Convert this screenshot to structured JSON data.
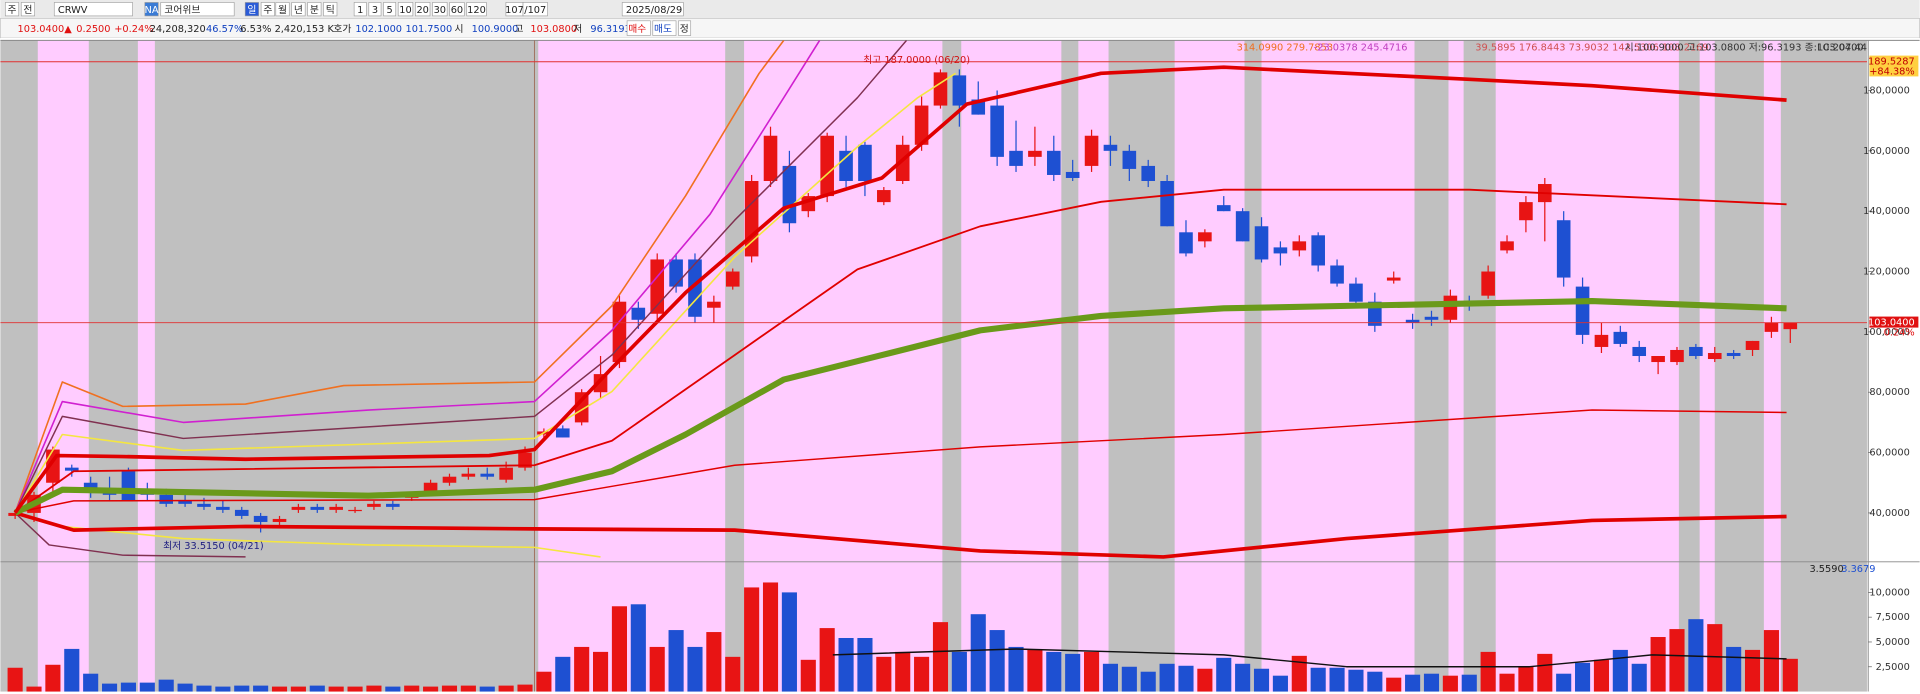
{
  "toolbar": {
    "row1": [
      "주",
      "전",
      "CRWV",
      "NA",
      "코어위브",
      "일",
      "주",
      "월",
      "년",
      "분",
      "틱",
      "1",
      "3",
      "5",
      "10",
      "20",
      "30",
      "60",
      "120",
      "107",
      "/107",
      "2025/08/29"
    ],
    "row2": [
      {
        "text": "103.0400▲",
        "color": "#e01010"
      },
      {
        "text": "0.2500",
        "color": "#e01010"
      },
      {
        "text": "+0.24%",
        "color": "#e01010"
      },
      {
        "text": "24,208,320",
        "color": "#222222"
      },
      {
        "text": "46.57%",
        "color": "#1040c0"
      },
      {
        "text": "6.53%",
        "color": "#222222"
      },
      {
        "text": "2,420,153 K",
        "color": "#222222"
      },
      {
        "text": "호가",
        "color": "#222222"
      },
      {
        "text": "102.1000",
        "color": "#1040c0"
      },
      {
        "text": "101.7500",
        "color": "#1040c0"
      },
      {
        "text": "시",
        "color": "#222222"
      },
      {
        "text": "100.9000",
        "color": "#1040c0"
      },
      {
        "text": "고",
        "color": "#222222"
      },
      {
        "text": "103.0800",
        "color": "#e01010"
      },
      {
        "text": "저",
        "color": "#222222"
      },
      {
        "text": "96.3193",
        "color": "#1040c0"
      },
      {
        "text": "매수",
        "color": "#e01010"
      },
      {
        "text": "매도",
        "color": "#1040c0"
      },
      {
        "text": "정",
        "color": "#222222"
      }
    ]
  },
  "chart_data": [
    {
      "type": "candlestick",
      "xlim": [
        -0.78,
        98.06
      ],
      "ylim": [
        24.2,
        196.6
      ],
      "yticks": [
        {
          "value": 40,
          "label": "40,0000"
        },
        {
          "value": 60,
          "label": "60,0000"
        },
        {
          "value": 80,
          "label": "80,0000"
        },
        {
          "value": 100,
          "label": "100,0000"
        },
        {
          "value": 120,
          "label": "120,0000"
        },
        {
          "value": 140,
          "label": "140,0000"
        },
        {
          "value": 160,
          "label": "160,0000"
        },
        {
          "value": 180,
          "label": "180,0000"
        }
      ],
      "up_color": "#e81414",
      "down_color": "#1e50d2",
      "plot_bg": "#c0c0c0",
      "band_color": "#ffccff",
      "bands": [
        [
          1.2,
          3.9
        ],
        [
          6.5,
          7.4
        ],
        [
          27.7,
          37.6
        ],
        [
          38.6,
          49.1
        ],
        [
          50.1,
          55.4
        ],
        [
          56.3,
          57.9
        ],
        [
          61.4,
          65.1
        ],
        [
          66.0,
          74.1
        ],
        [
          75.9,
          76.7
        ],
        [
          78.4,
          88.1
        ],
        [
          89.2,
          90.0
        ],
        [
          92.6,
          93.5
        ]
      ],
      "candles": [
        [
          39,
          40,
          38,
          40
        ],
        [
          40,
          47,
          37,
          46
        ],
        [
          50,
          62,
          47,
          61
        ],
        [
          55,
          56,
          52,
          54
        ],
        [
          50,
          52,
          45,
          48
        ],
        [
          48,
          52,
          44,
          46
        ],
        [
          54,
          55,
          44,
          44
        ],
        [
          48,
          50,
          44,
          46
        ],
        [
          46,
          48,
          42,
          43
        ],
        [
          44,
          46,
          42,
          43
        ],
        [
          43,
          45,
          41,
          42
        ],
        [
          42,
          44,
          40,
          41
        ],
        [
          41,
          42,
          38,
          39
        ],
        [
          39,
          40,
          33.515,
          37
        ],
        [
          37,
          39,
          36,
          38
        ],
        [
          41,
          43,
          40,
          42
        ],
        [
          42,
          43,
          40,
          41
        ],
        [
          41,
          43,
          40,
          42
        ],
        [
          41,
          42,
          40,
          41
        ],
        [
          42,
          44,
          41,
          43
        ],
        [
          43,
          44,
          41,
          42
        ],
        [
          45,
          47,
          44,
          46
        ],
        [
          47,
          51,
          46,
          50
        ],
        [
          50,
          53,
          49,
          52
        ],
        [
          52,
          55,
          51,
          53
        ],
        [
          53,
          55,
          51,
          52
        ],
        [
          51,
          57,
          50,
          55
        ],
        [
          55,
          62,
          54,
          60
        ],
        [
          66,
          68,
          64,
          67
        ],
        [
          68,
          69,
          65,
          65
        ],
        [
          70,
          81,
          69,
          80
        ],
        [
          80,
          92,
          78,
          86
        ],
        [
          90,
          112,
          88,
          110
        ],
        [
          108,
          110,
          101,
          104
        ],
        [
          106,
          126,
          104,
          124
        ],
        [
          124,
          126,
          113,
          115
        ],
        [
          124,
          126,
          103,
          105
        ],
        [
          108,
          112,
          103,
          110
        ],
        [
          115,
          121,
          114,
          120
        ],
        [
          125,
          152,
          123,
          150
        ],
        [
          150,
          168,
          148,
          165
        ],
        [
          155,
          160,
          133,
          136
        ],
        [
          140,
          146,
          138,
          145
        ],
        [
          145,
          166,
          143,
          165
        ],
        [
          160,
          165,
          148,
          150
        ],
        [
          162,
          163,
          145,
          150
        ],
        [
          143,
          148,
          142,
          147
        ],
        [
          150,
          165,
          149,
          162
        ],
        [
          162,
          178,
          160,
          175
        ],
        [
          175,
          187,
          174,
          186
        ],
        [
          185,
          187,
          168,
          175
        ],
        [
          177,
          183,
          172,
          172
        ],
        [
          175,
          180,
          155,
          158
        ],
        [
          160,
          170,
          153,
          155
        ],
        [
          158,
          168,
          155,
          160
        ],
        [
          160,
          165,
          150,
          152
        ],
        [
          153,
          157,
          150,
          151
        ],
        [
          155,
          167,
          153,
          165
        ],
        [
          162,
          165,
          155,
          160
        ],
        [
          160,
          162,
          150,
          154
        ],
        [
          155,
          157,
          148,
          150
        ],
        [
          150,
          152,
          135,
          135
        ],
        [
          133,
          137,
          125,
          126
        ],
        [
          130,
          134,
          128,
          133
        ],
        [
          142,
          145,
          140,
          140
        ],
        [
          140,
          141,
          130,
          130
        ],
        [
          135,
          138,
          123,
          124
        ],
        [
          128,
          130,
          122,
          126
        ],
        [
          127,
          132,
          125,
          130
        ],
        [
          132,
          133,
          120,
          122
        ],
        [
          122,
          124,
          115,
          116
        ],
        [
          116,
          118,
          109,
          110
        ],
        [
          110,
          113,
          100,
          102
        ],
        [
          117,
          120,
          116,
          118
        ],
        [
          104,
          106,
          101,
          103
        ],
        [
          105,
          107,
          102,
          104
        ],
        [
          104,
          114,
          103,
          112
        ],
        [
          110,
          112,
          107,
          109
        ],
        [
          112,
          122,
          111,
          120
        ],
        [
          127,
          132,
          126,
          130
        ],
        [
          137,
          145,
          133,
          143
        ],
        [
          143,
          151,
          130,
          149
        ],
        [
          137,
          140,
          115,
          118
        ],
        [
          115,
          118,
          96,
          99
        ],
        [
          95,
          103,
          93,
          99
        ],
        [
          100,
          102,
          95,
          96
        ],
        [
          95,
          97,
          90,
          92
        ],
        [
          90,
          92,
          86,
          92
        ],
        [
          90,
          95,
          89,
          94
        ],
        [
          95,
          96,
          91,
          92
        ],
        [
          91,
          95,
          90,
          93
        ],
        [
          93,
          94,
          91,
          92
        ],
        [
          94,
          97,
          92,
          97
        ],
        [
          100,
          105,
          98,
          103
        ],
        [
          100.9,
          103.08,
          96.3193,
          103.04
        ]
      ],
      "lines": [
        {
          "color": "#f07020",
          "width": 1.3,
          "x": [
            0,
            2.5,
            5.7,
            12.2,
            17.4,
            27.5,
            31.6,
            35.5,
            39.4,
            40.7
          ],
          "values": [
            40,
            83.4,
            75.3,
            76.1,
            82.2,
            83.4,
            108.6,
            145.1,
            185.7,
            196.6
          ]
        },
        {
          "color": "#d020d0",
          "width": 1.3,
          "x": [
            0,
            2.5,
            8.9,
            18.7,
            27.5,
            31.6,
            36.8,
            40.7,
            42.6
          ],
          "values": [
            40,
            76.9,
            70,
            74.1,
            76.9,
            100.5,
            139,
            177.6,
            196.6
          ]
        },
        {
          "color": "#803050",
          "width": 1.2,
          "x": [
            0,
            2.5,
            8.9,
            27.5,
            31.6,
            38.1,
            44.6,
            47.2
          ],
          "values": [
            40,
            72,
            64.7,
            72,
            92.3,
            137,
            177.6,
            196.6
          ]
        },
        {
          "color": "#f4e640",
          "width": 1.3,
          "x": [
            0,
            2.5,
            8.9,
            27.5,
            31.6,
            38.1,
            44.6,
            47.8,
            49.8
          ],
          "values": [
            40,
            66,
            60.7,
            64.7,
            80.2,
            124.8,
            161.3,
            177.6,
            185.7
          ]
        },
        {
          "color": "#f4e640",
          "width": 1.3,
          "x": [
            0,
            2.5,
            8.9,
            18.7,
            27.5,
            31.0
          ],
          "values": [
            40,
            35.5,
            31.5,
            29.4,
            28.6,
            25.4
          ]
        },
        {
          "color": "#803050",
          "width": 1.2,
          "x": [
            0,
            1.8,
            5.7,
            12.2
          ],
          "values": [
            40,
            29.4,
            26,
            25.4
          ]
        },
        {
          "color": "#e00000",
          "width": 1.2,
          "x": [
            0,
            3.1,
            27.5,
            38.1,
            51.1,
            64,
            83.5,
            93.8
          ],
          "values": [
            40,
            44,
            44.4,
            55.8,
            61.9,
            66,
            74.1,
            73.3
          ]
        },
        {
          "color": "#e00000",
          "width": 1.5,
          "x": [
            0,
            3.1,
            27.5,
            31.6,
            38.1,
            44.6,
            51.1,
            57.5,
            64,
            77,
            93.8
          ],
          "values": [
            40,
            53.8,
            55.8,
            63.9,
            92.3,
            120.7,
            135,
            143.1,
            147.1,
            147.1,
            142.3
          ]
        },
        {
          "color": "#e00000",
          "width": 3,
          "x": [
            0,
            3.1,
            12.2,
            27.5,
            38.1,
            51.1,
            60.8,
            70.5,
            83.5,
            93.8
          ],
          "values": [
            40,
            34.3,
            35.5,
            34.7,
            34.3,
            27.4,
            25.4,
            31.5,
            37.5,
            38.8
          ]
        },
        {
          "color": "#6a9a1a",
          "width": 5,
          "x": [
            0,
            2.5,
            8.9,
            18.7,
            27.5,
            31.6,
            35.5,
            40.7,
            45.9,
            51.1,
            57.5,
            64,
            70.5,
            83.5,
            93.8
          ],
          "values": [
            40,
            47.7,
            46.9,
            45.7,
            47.7,
            53.8,
            66,
            84.2,
            92.3,
            100.5,
            105.3,
            107.8,
            108.6,
            110.2,
            107.8
          ]
        },
        {
          "color": "#e00000",
          "width": 3,
          "x": [
            0,
            2.2,
            5.7,
            12.2,
            25.1,
            27.5,
            31.6,
            35.5,
            40.7,
            45.9,
            50.4,
            57.5,
            64,
            77,
            83.5,
            93.8
          ],
          "values": [
            40,
            59,
            58.7,
            57.8,
            59,
            61,
            88,
            113,
            141,
            151,
            175.5,
            185.7,
            187.7,
            183.7,
            181.6,
            176.8
          ]
        }
      ],
      "vlines": [
        27.5
      ],
      "hlines": [
        {
          "value": 189.5287,
          "label": "189.5287",
          "note": "+84.38%"
        },
        {
          "value": 103.04,
          "label": "103.0400",
          "note": "0.24%"
        }
      ],
      "annotations": [
        "최고 187.0000 (06/20)",
        "최저 33.5150 (04/21)"
      ],
      "legend_texts": [
        {
          "text": "314.0990 279.7853",
          "color": "#f07020"
        },
        {
          "text": "-23.0378 245.4716",
          "color": "#c040c0"
        },
        {
          "text": "39.5895 176.8443 73.9032 142.5306 108.2169",
          "color": "#d05050"
        },
        {
          "text": "시:100.9000 고:103.0800 저:96.3193 종:103.0400",
          "color": "#333333"
        },
        {
          "text": "LC:207.44",
          "color": "#333333"
        }
      ]
    },
    {
      "type": "bar",
      "xlim": [
        -0.78,
        98.06
      ],
      "ylim": [
        0,
        12.96
      ],
      "yticks": [
        {
          "value": 2.5,
          "label": "2,5000"
        },
        {
          "value": 5,
          "label": "5,0000"
        },
        {
          "value": 7.5,
          "label": "7,5000"
        },
        {
          "value": 10,
          "label": "10,0000"
        }
      ],
      "values": [
        2.4,
        0.5,
        2.7,
        4.3,
        1.8,
        0.8,
        0.9,
        0.9,
        1.2,
        0.8,
        0.6,
        0.5,
        0.6,
        0.6,
        0.5,
        0.5,
        0.6,
        0.5,
        0.5,
        0.6,
        0.5,
        0.6,
        0.5,
        0.6,
        0.6,
        0.5,
        0.6,
        0.7,
        2.0,
        3.5,
        4.5,
        4.0,
        8.6,
        8.8,
        4.5,
        6.2,
        4.5,
        6.0,
        3.5,
        10.5,
        11.0,
        10.0,
        3.2,
        6.4,
        5.4,
        5.4,
        3.5,
        4.0,
        3.5,
        7.0,
        4.0,
        7.8,
        6.2,
        4.5,
        4.2,
        4.0,
        3.8,
        4.0,
        2.8,
        2.5,
        2.0,
        2.8,
        2.6,
        2.3,
        3.4,
        2.8,
        2.3,
        1.6,
        3.6,
        2.4,
        2.4,
        2.2,
        2.0,
        1.4,
        1.7,
        1.8,
        1.6,
        1.7,
        4.0,
        1.8,
        2.5,
        3.8,
        1.8,
        2.9,
        3.2,
        4.2,
        2.8,
        5.5,
        6.3,
        7.3,
        6.8,
        4.5,
        4.2,
        6.2,
        3.3
      ],
      "lines": [
        {
          "color": "#111111",
          "width": 1.2,
          "x": [
            43.3,
            53.0,
            64,
            70.5,
            80.2,
            83.5,
            86.7,
            93.8
          ],
          "values": [
            3.7,
            4.3,
            3.7,
            2.5,
            2.5,
            3.1,
            3.7,
            3.3
          ]
        }
      ],
      "legend_texts": [
        {
          "text": "3.5590",
          "color": "#222222"
        },
        {
          "text": "3.3679",
          "color": "#1e50d2"
        }
      ]
    }
  ]
}
